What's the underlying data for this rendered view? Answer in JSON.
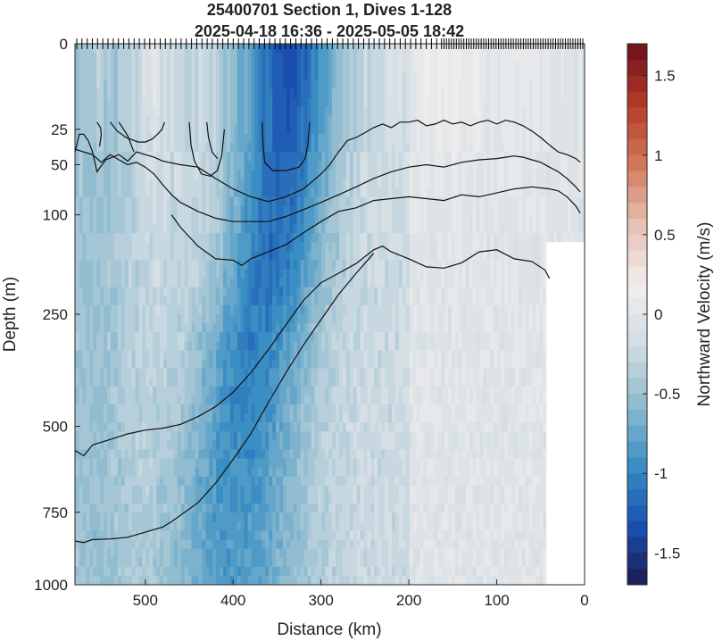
{
  "chart_data": {
    "type": "heatmap",
    "title": "25400701 Section 1, Dives 1-128",
    "subtitle": "2025-04-18 16:36 - 2025-05-05 18:42",
    "xlabel": "Distance (km)",
    "ylabel": "Depth (m)",
    "colorbar_label": "Northward Velocity (m/s)",
    "x_reversed": true,
    "xlim": [
      580,
      0
    ],
    "x_ticks": [
      500,
      400,
      300,
      200,
      100,
      0
    ],
    "x_tick_labels": [
      "500",
      "400",
      "300",
      "200",
      "100",
      "0"
    ],
    "y_scale": "sqrt",
    "ylim": [
      0,
      1000
    ],
    "y_ticks": [
      0,
      25,
      50,
      100,
      250,
      500,
      750,
      1000
    ],
    "y_tick_labels": [
      "0",
      "25",
      "50",
      "100",
      "250",
      "500",
      "750",
      "1000"
    ],
    "clim": [
      -1.7,
      1.7
    ],
    "colorbar_ticks": [
      1.5,
      1,
      0.5,
      0,
      -0.5,
      -1,
      -1.5
    ],
    "colorbar_tick_labels": [
      "1.5",
      "1",
      "0.5",
      "0",
      "-0.5",
      "-1",
      "-1.5"
    ],
    "colormap": [
      "#1a1a4d",
      "#1a52b3",
      "#3a8fc4",
      "#8fbccf",
      "#d3dde3",
      "#f2eeee",
      "#e6c0b3",
      "#d2785a",
      "#b33a28",
      "#6b0f1a"
    ],
    "core": {
      "description_values": "jet core centered near x=340 km, strongest near surface",
      "center_km": [
        340,
        345,
        350,
        360,
        375,
        385,
        395,
        400
      ],
      "center_depth_m": [
        0,
        50,
        100,
        200,
        300,
        450,
        650,
        1000
      ],
      "peak_velocity_ms": -1.1
    },
    "contours": [
      {
        "x": [
          555,
          551,
          550,
          552
        ],
        "y": [
          21,
          24,
          28,
          36
        ]
      },
      {
        "x": [
          530,
          520,
          513
        ],
        "y": [
          21,
          29,
          40
        ]
      },
      {
        "x": [
          540,
          532,
          522,
          508,
          500,
          492,
          486,
          481,
          478
        ],
        "y": [
          21,
          26,
          30,
          33,
          33,
          31,
          28,
          25,
          21
        ]
      },
      {
        "x": [
          450,
          448,
          444,
          436,
          426,
          418,
          413,
          410
        ],
        "y": [
          21,
          35,
          47,
          58,
          60,
          55,
          43,
          25
        ]
      },
      {
        "x": [
          430,
          428,
          424,
          418
        ],
        "y": [
          21,
          30,
          40,
          45
        ]
      },
      {
        "x": [
          367,
          366,
          364,
          355,
          340,
          325,
          318,
          315,
          313
        ],
        "y": [
          21,
          35,
          48,
          55,
          55,
          52,
          45,
          35,
          21
        ]
      },
      {
        "x": [
          580,
          575,
          570,
          565,
          560,
          555,
          545,
          530,
          520,
          510,
          500,
          490,
          480,
          460,
          440,
          420,
          400,
          380,
          360,
          340,
          320,
          300,
          290,
          280,
          270,
          260,
          250,
          240,
          230,
          220,
          210,
          200,
          190,
          180,
          170,
          160,
          150,
          140,
          130,
          120,
          110,
          100,
          90,
          80,
          70,
          60,
          50,
          40,
          30,
          20,
          10,
          5
        ],
        "y": [
          40,
          28,
          28,
          32,
          40,
          56,
          46,
          42,
          47,
          40,
          42,
          44,
          47,
          50,
          52,
          62,
          72,
          80,
          85,
          80,
          72,
          58,
          50,
          40,
          32,
          30,
          27,
          24,
          22,
          24,
          21,
          21,
          20,
          23,
          22,
          20,
          22,
          21,
          23,
          21,
          20,
          22,
          20,
          21,
          23,
          26,
          30,
          35,
          40,
          42,
          45,
          48
        ]
      },
      {
        "x": [
          580,
          570,
          560,
          550,
          540,
          530,
          520,
          510,
          500,
          490,
          480,
          470,
          460,
          440,
          420,
          400,
          380,
          360,
          340,
          320,
          300,
          280,
          260,
          240,
          220,
          200,
          180,
          160,
          140,
          120,
          100,
          90,
          80,
          70,
          60,
          50,
          40,
          30,
          20,
          10,
          5
        ],
        "y": [
          38,
          40,
          42,
          48,
          42,
          46,
          50,
          48,
          52,
          58,
          68,
          78,
          86,
          96,
          104,
          108,
          108,
          108,
          102,
          94,
          86,
          78,
          70,
          62,
          56,
          52,
          50,
          52,
          48,
          46,
          45,
          44,
          43,
          44,
          46,
          48,
          52,
          56,
          62,
          70,
          75
        ]
      },
      {
        "x": [
          470,
          460,
          440,
          420,
          400,
          390,
          380,
          360,
          340,
          320,
          300,
          280,
          260,
          240,
          220,
          200,
          180,
          160,
          140,
          120,
          100,
          80,
          60,
          40,
          30,
          20,
          10,
          5
        ],
        "y": [
          100,
          115,
          140,
          158,
          160,
          168,
          158,
          148,
          138,
          122,
          108,
          96,
          92,
          84,
          82,
          80,
          82,
          84,
          78,
          80,
          76,
          72,
          70,
          72,
          74,
          80,
          90,
          98
        ]
      },
      {
        "x": [
          580,
          570,
          560,
          540,
          520,
          500,
          480,
          460,
          440,
          420,
          400,
          380,
          360,
          340,
          320,
          300,
          280,
          260,
          240,
          230,
          220,
          200,
          180,
          160,
          140,
          120,
          100,
          80,
          60,
          45,
          40
        ],
        "y": [
          565,
          580,
          550,
          535,
          520,
          510,
          505,
          495,
          475,
          450,
          415,
          370,
          320,
          270,
          225,
          195,
          180,
          165,
          145,
          140,
          148,
          158,
          170,
          172,
          164,
          148,
          145,
          158,
          162,
          175,
          188
        ]
      },
      {
        "x": [
          580,
          570,
          560,
          540,
          520,
          500,
          480,
          470,
          460,
          440,
          420,
          400,
          380,
          360,
          340,
          320,
          300,
          280,
          260,
          240
        ],
        "y": [
          845,
          850,
          840,
          838,
          832,
          815,
          798,
          780,
          760,
          720,
          660,
          590,
          520,
          440,
          370,
          310,
          260,
          215,
          180,
          150
        ]
      }
    ],
    "dive_ticks": {
      "count": 128,
      "x_first_km": 578,
      "x_last_km": 2
    }
  }
}
